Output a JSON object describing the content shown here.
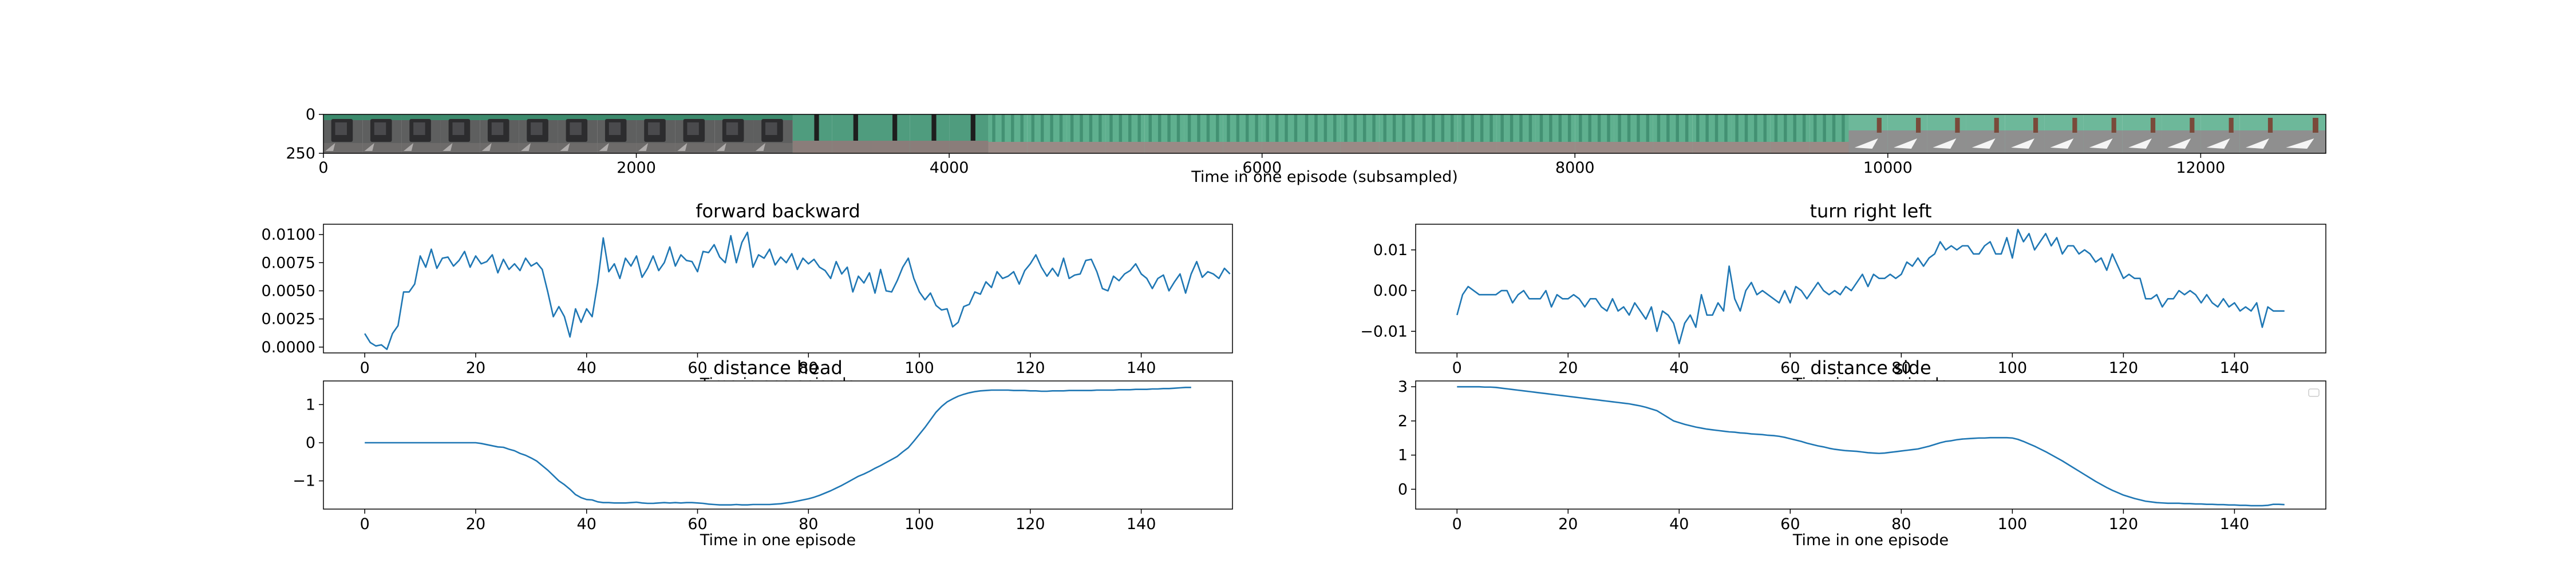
{
  "chart_data": [
    {
      "type": "image-strip",
      "xlabel": "Time in one episode (subsampled)",
      "xticks": [
        0,
        2000,
        4000,
        6000,
        8000,
        10000,
        12000
      ],
      "yticks": [
        0,
        250
      ],
      "xlim": [
        0,
        12800
      ],
      "ylim": [
        250,
        0
      ],
      "frames": [
        {
          "scene": "bin",
          "start": 0,
          "end": 250
        },
        {
          "scene": "bin",
          "start": 250,
          "end": 500
        },
        {
          "scene": "bin",
          "start": 500,
          "end": 750
        },
        {
          "scene": "bin",
          "start": 750,
          "end": 1000
        },
        {
          "scene": "bin",
          "start": 1000,
          "end": 1250
        },
        {
          "scene": "bin",
          "start": 1250,
          "end": 1500
        },
        {
          "scene": "bin",
          "start": 1500,
          "end": 1750
        },
        {
          "scene": "bin",
          "start": 1750,
          "end": 2000
        },
        {
          "scene": "bin",
          "start": 2000,
          "end": 2250
        },
        {
          "scene": "bin",
          "start": 2250,
          "end": 2500
        },
        {
          "scene": "bin",
          "start": 2500,
          "end": 2750
        },
        {
          "scene": "bin",
          "start": 2750,
          "end": 3000
        },
        {
          "scene": "curtain-dark",
          "start": 3000,
          "end": 3250
        },
        {
          "scene": "curtain-dark",
          "start": 3250,
          "end": 3500
        },
        {
          "scene": "curtain-dark",
          "start": 3500,
          "end": 3750
        },
        {
          "scene": "curtain-dark",
          "start": 3750,
          "end": 4000
        },
        {
          "scene": "curtain-dark",
          "start": 4000,
          "end": 4250
        },
        {
          "scene": "curtain",
          "start": 4250,
          "end": 4500
        },
        {
          "scene": "curtain",
          "start": 4500,
          "end": 4750
        },
        {
          "scene": "curtain",
          "start": 4750,
          "end": 5000
        },
        {
          "scene": "curtain",
          "start": 5000,
          "end": 5250
        },
        {
          "scene": "curtain",
          "start": 5250,
          "end": 5500
        },
        {
          "scene": "curtain",
          "start": 5500,
          "end": 5750
        },
        {
          "scene": "curtain",
          "start": 5750,
          "end": 6000
        },
        {
          "scene": "curtain",
          "start": 6000,
          "end": 6250
        },
        {
          "scene": "curtain",
          "start": 6250,
          "end": 6500
        },
        {
          "scene": "curtain",
          "start": 6500,
          "end": 6750
        },
        {
          "scene": "curtain",
          "start": 6750,
          "end": 7000
        },
        {
          "scene": "curtain",
          "start": 7000,
          "end": 7250
        },
        {
          "scene": "curtain",
          "start": 7250,
          "end": 7500
        },
        {
          "scene": "curtain",
          "start": 7500,
          "end": 7750
        },
        {
          "scene": "curtain",
          "start": 7750,
          "end": 8000
        },
        {
          "scene": "curtain",
          "start": 8000,
          "end": 8250
        },
        {
          "scene": "curtain",
          "start": 8250,
          "end": 8500
        },
        {
          "scene": "curtain",
          "start": 8500,
          "end": 8750
        },
        {
          "scene": "curtain",
          "start": 8750,
          "end": 9000
        },
        {
          "scene": "curtain",
          "start": 9000,
          "end": 9250
        },
        {
          "scene": "curtain",
          "start": 9250,
          "end": 9500
        },
        {
          "scene": "curtain",
          "start": 9500,
          "end": 9750
        },
        {
          "scene": "table",
          "start": 9750,
          "end": 10000
        },
        {
          "scene": "table",
          "start": 10000,
          "end": 10250
        },
        {
          "scene": "table",
          "start": 10250,
          "end": 10500
        },
        {
          "scene": "table",
          "start": 10500,
          "end": 10750
        },
        {
          "scene": "table",
          "start": 10750,
          "end": 11000
        },
        {
          "scene": "table",
          "start": 11000,
          "end": 11250
        },
        {
          "scene": "table",
          "start": 11250,
          "end": 11500
        },
        {
          "scene": "table",
          "start": 11500,
          "end": 11750
        },
        {
          "scene": "table",
          "start": 11750,
          "end": 12000
        },
        {
          "scene": "table",
          "start": 12000,
          "end": 12250
        },
        {
          "scene": "table",
          "start": 12250,
          "end": 12500
        },
        {
          "scene": "table",
          "start": 12500,
          "end": 12800
        }
      ]
    },
    {
      "type": "line",
      "title": "forward backward",
      "xlabel": "Time in one episode",
      "xticks": [
        0,
        20,
        40,
        60,
        80,
        100,
        120,
        140
      ],
      "yticks": [
        0.0,
        0.0025,
        0.005,
        0.0075,
        0.01
      ],
      "ytick_labels": [
        "0.0000",
        "0.0025",
        "0.0050",
        "0.0075",
        "0.0100"
      ],
      "xlim": [
        -7.45,
        156.45
      ],
      "ylim": [
        -0.00052,
        0.01092
      ],
      "series": [
        {
          "color": "#1f77b4",
          "values": [
            0.0012,
            0.0004,
            0.0001,
            0.0002,
            -0.0002,
            0.0012,
            0.0019,
            0.0049,
            0.0049,
            0.0056,
            0.0081,
            0.0071,
            0.0087,
            0.007,
            0.0079,
            0.008,
            0.0072,
            0.0077,
            0.0085,
            0.0071,
            0.0081,
            0.0074,
            0.0076,
            0.0082,
            0.0066,
            0.0078,
            0.0069,
            0.0074,
            0.0068,
            0.0079,
            0.0072,
            0.0075,
            0.0069,
            0.0049,
            0.0027,
            0.0036,
            0.0027,
            0.0009,
            0.0034,
            0.0022,
            0.0034,
            0.0027,
            0.0057,
            0.0097,
            0.0067,
            0.0074,
            0.0061,
            0.0079,
            0.0072,
            0.0081,
            0.0062,
            0.007,
            0.0081,
            0.0068,
            0.0075,
            0.0089,
            0.0072,
            0.0082,
            0.0077,
            0.0076,
            0.0067,
            0.0085,
            0.0084,
            0.0091,
            0.008,
            0.0075,
            0.0099,
            0.0075,
            0.0093,
            0.0102,
            0.0071,
            0.0082,
            0.0079,
            0.0087,
            0.0073,
            0.008,
            0.0075,
            0.0083,
            0.0069,
            0.0079,
            0.0074,
            0.0078,
            0.0071,
            0.0068,
            0.0061,
            0.0076,
            0.0065,
            0.0071,
            0.0049,
            0.0063,
            0.0057,
            0.0066,
            0.0048,
            0.0069,
            0.005,
            0.0049,
            0.0059,
            0.0071,
            0.0079,
            0.0061,
            0.0049,
            0.0042,
            0.0048,
            0.0037,
            0.0033,
            0.0034,
            0.0018,
            0.0022,
            0.0036,
            0.0038,
            0.0049,
            0.0047,
            0.0058,
            0.0053,
            0.0067,
            0.0061,
            0.0063,
            0.0067,
            0.0056,
            0.0068,
            0.0074,
            0.0082,
            0.0071,
            0.0063,
            0.007,
            0.0063,
            0.0079,
            0.0061,
            0.0064,
            0.0065,
            0.0077,
            0.0078,
            0.0067,
            0.0052,
            0.005,
            0.0063,
            0.0059,
            0.0065,
            0.0068,
            0.0074,
            0.0065,
            0.0061,
            0.0052,
            0.0061,
            0.0064,
            0.005,
            0.0058,
            0.0065,
            0.0048,
            0.0065,
            0.0076,
            0.0062,
            0.0067,
            0.0065,
            0.0061,
            0.007,
            0.0065
          ]
        }
      ]
    },
    {
      "type": "line",
      "title": "turn right left",
      "xlabel": "Time in one episode",
      "xticks": [
        0,
        20,
        40,
        60,
        80,
        100,
        120,
        140
      ],
      "yticks": [
        -0.01,
        0.0,
        0.01
      ],
      "ytick_labels": [
        "−0.01",
        "0.00",
        "0.01"
      ],
      "xlim": [
        -7.45,
        156.45
      ],
      "ylim": [
        -0.0153,
        0.0163
      ],
      "series": [
        {
          "color": "#1f77b4",
          "values": [
            -0.006,
            -0.001,
            0.001,
            0.0,
            -0.001,
            -0.001,
            -0.001,
            -0.001,
            0.0,
            0.0,
            -0.003,
            -0.001,
            0.0,
            -0.002,
            -0.002,
            -0.002,
            0.0,
            -0.004,
            -0.001,
            -0.002,
            -0.002,
            -0.001,
            -0.002,
            -0.004,
            -0.002,
            -0.002,
            -0.004,
            -0.005,
            -0.002,
            -0.005,
            -0.004,
            -0.006,
            -0.003,
            -0.005,
            -0.007,
            -0.004,
            -0.01,
            -0.005,
            -0.006,
            -0.008,
            -0.013,
            -0.008,
            -0.006,
            -0.009,
            -0.001,
            -0.006,
            -0.006,
            -0.003,
            -0.005,
            0.006,
            -0.002,
            -0.005,
            0.0,
            0.002,
            -0.001,
            0.0,
            -0.001,
            -0.002,
            -0.003,
            0.0,
            -0.003,
            0.001,
            0.0,
            -0.002,
            0.0,
            0.002,
            0.0,
            -0.001,
            0.0,
            -0.001,
            0.001,
            0.0,
            0.002,
            0.004,
            0.001,
            0.004,
            0.003,
            0.003,
            0.004,
            0.003,
            0.004,
            0.007,
            0.006,
            0.008,
            0.006,
            0.008,
            0.009,
            0.012,
            0.01,
            0.011,
            0.01,
            0.011,
            0.011,
            0.009,
            0.009,
            0.011,
            0.012,
            0.009,
            0.009,
            0.013,
            0.008,
            0.015,
            0.012,
            0.014,
            0.01,
            0.012,
            0.014,
            0.011,
            0.013,
            0.009,
            0.011,
            0.011,
            0.009,
            0.01,
            0.009,
            0.007,
            0.008,
            0.005,
            0.009,
            0.006,
            0.003,
            0.004,
            0.003,
            0.003,
            -0.002,
            -0.002,
            -0.001,
            -0.004,
            -0.002,
            -0.002,
            0.0,
            -0.001,
            0.0,
            -0.001,
            -0.003,
            -0.001,
            -0.003,
            -0.004,
            -0.002,
            -0.004,
            -0.003,
            -0.005,
            -0.004,
            -0.005,
            -0.003,
            -0.009,
            -0.004,
            -0.005,
            -0.005,
            -0.005
          ]
        }
      ]
    },
    {
      "type": "line",
      "title": "distance head",
      "xlabel": "Time in one episode",
      "xticks": [
        0,
        20,
        40,
        60,
        80,
        100,
        120,
        140
      ],
      "yticks": [
        -1,
        0,
        1
      ],
      "ytick_labels": [
        "−1",
        "0",
        "1"
      ],
      "xlim": [
        -7.45,
        156.45
      ],
      "ylim": [
        -1.74,
        1.62
      ],
      "series": [
        {
          "color": "#1f77b4",
          "values": [
            0.0,
            0.0,
            0.0,
            0.0,
            0.0,
            0.0,
            0.0,
            0.0,
            0.0,
            0.0,
            0.0,
            0.0,
            0.0,
            0.0,
            0.0,
            0.0,
            0.0,
            0.0,
            0.0,
            0.0,
            0.0,
            -0.02,
            -0.05,
            -0.08,
            -0.11,
            -0.12,
            -0.17,
            -0.21,
            -0.28,
            -0.33,
            -0.4,
            -0.48,
            -0.6,
            -0.72,
            -0.86,
            -1.0,
            -1.1,
            -1.22,
            -1.36,
            -1.44,
            -1.49,
            -1.5,
            -1.55,
            -1.57,
            -1.57,
            -1.58,
            -1.58,
            -1.58,
            -1.57,
            -1.56,
            -1.58,
            -1.59,
            -1.59,
            -1.58,
            -1.57,
            -1.58,
            -1.57,
            -1.58,
            -1.57,
            -1.57,
            -1.58,
            -1.59,
            -1.61,
            -1.62,
            -1.63,
            -1.63,
            -1.63,
            -1.62,
            -1.63,
            -1.63,
            -1.62,
            -1.62,
            -1.62,
            -1.62,
            -1.61,
            -1.6,
            -1.58,
            -1.56,
            -1.53,
            -1.5,
            -1.47,
            -1.43,
            -1.38,
            -1.32,
            -1.26,
            -1.19,
            -1.12,
            -1.04,
            -0.96,
            -0.88,
            -0.82,
            -0.75,
            -0.67,
            -0.6,
            -0.52,
            -0.44,
            -0.36,
            -0.24,
            -0.13,
            0.04,
            0.22,
            0.4,
            0.6,
            0.8,
            0.95,
            1.07,
            1.15,
            1.22,
            1.27,
            1.31,
            1.34,
            1.36,
            1.37,
            1.38,
            1.38,
            1.38,
            1.38,
            1.37,
            1.37,
            1.37,
            1.36,
            1.36,
            1.35,
            1.35,
            1.36,
            1.36,
            1.36,
            1.37,
            1.37,
            1.37,
            1.37,
            1.37,
            1.38,
            1.38,
            1.38,
            1.38,
            1.39,
            1.39,
            1.39,
            1.4,
            1.4,
            1.4,
            1.41,
            1.41,
            1.42,
            1.42,
            1.43,
            1.44,
            1.45,
            1.45
          ]
        }
      ]
    },
    {
      "type": "line",
      "title": "distance side",
      "xlabel": "Time in one episode",
      "xticks": [
        0,
        20,
        40,
        60,
        80,
        100,
        120,
        140
      ],
      "yticks": [
        0,
        1,
        2,
        3
      ],
      "ytick_labels": [
        "0",
        "1",
        "2",
        "3"
      ],
      "xlim": [
        -7.45,
        156.45
      ],
      "ylim": [
        -0.58,
        3.17
      ],
      "series": [
        {
          "color": "#1f77b4",
          "values": [
            3.0,
            3.0,
            3.0,
            3.0,
            3.0,
            2.99,
            2.99,
            2.98,
            2.96,
            2.94,
            2.92,
            2.9,
            2.88,
            2.86,
            2.84,
            2.82,
            2.8,
            2.78,
            2.76,
            2.74,
            2.72,
            2.7,
            2.68,
            2.66,
            2.64,
            2.62,
            2.6,
            2.58,
            2.56,
            2.54,
            2.52,
            2.5,
            2.47,
            2.44,
            2.4,
            2.35,
            2.3,
            2.2,
            2.1,
            2.0,
            1.95,
            1.9,
            1.86,
            1.82,
            1.79,
            1.76,
            1.74,
            1.72,
            1.7,
            1.68,
            1.67,
            1.65,
            1.64,
            1.62,
            1.61,
            1.6,
            1.58,
            1.57,
            1.55,
            1.52,
            1.48,
            1.44,
            1.4,
            1.35,
            1.31,
            1.27,
            1.24,
            1.2,
            1.17,
            1.15,
            1.13,
            1.12,
            1.11,
            1.09,
            1.07,
            1.06,
            1.05,
            1.06,
            1.08,
            1.1,
            1.12,
            1.14,
            1.16,
            1.18,
            1.22,
            1.26,
            1.31,
            1.36,
            1.4,
            1.42,
            1.45,
            1.47,
            1.48,
            1.49,
            1.5,
            1.5,
            1.51,
            1.51,
            1.51,
            1.51,
            1.5,
            1.46,
            1.4,
            1.33,
            1.26,
            1.18,
            1.1,
            1.01,
            0.92,
            0.83,
            0.73,
            0.63,
            0.53,
            0.43,
            0.33,
            0.23,
            0.14,
            0.05,
            -0.03,
            -0.1,
            -0.17,
            -0.22,
            -0.27,
            -0.31,
            -0.35,
            -0.37,
            -0.39,
            -0.4,
            -0.41,
            -0.41,
            -0.41,
            -0.42,
            -0.42,
            -0.43,
            -0.43,
            -0.44,
            -0.44,
            -0.45,
            -0.45,
            -0.46,
            -0.46,
            -0.47,
            -0.47,
            -0.48,
            -0.48,
            -0.48,
            -0.47,
            -0.44,
            -0.44,
            -0.45
          ]
        }
      ]
    }
  ]
}
